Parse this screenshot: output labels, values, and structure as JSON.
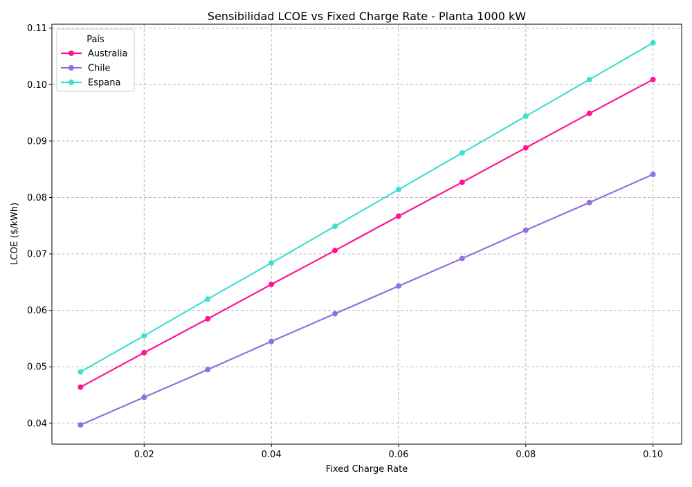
{
  "chart_data": {
    "type": "line",
    "title": "Sensibilidad LCOE vs Fixed Charge Rate - Planta 1000 kW",
    "xlabel": "Fixed Charge Rate",
    "ylabel": "LCOE ($/kWh)",
    "x": [
      0.01,
      0.02,
      0.03,
      0.04,
      0.05,
      0.06,
      0.07,
      0.08,
      0.09,
      0.1
    ],
    "xlim": [
      0.0055,
      0.1045
    ],
    "ylim": [
      0.0363,
      0.1107
    ],
    "xticks": [
      0.02,
      0.04,
      0.06,
      0.08,
      0.1
    ],
    "xtick_labels": [
      "0.02",
      "0.04",
      "0.06",
      "0.08",
      "0.10"
    ],
    "yticks": [
      0.04,
      0.05,
      0.06,
      0.07,
      0.08,
      0.09,
      0.1,
      0.11
    ],
    "ytick_labels": [
      "0.04",
      "0.05",
      "0.06",
      "0.07",
      "0.08",
      "0.09",
      "0.10",
      "0.11"
    ],
    "grid": true,
    "legend": {
      "title": "País",
      "placement": "top-left"
    },
    "series": [
      {
        "name": "Australia",
        "color": "#ff1493",
        "values": [
          0.0464,
          0.0525,
          0.0585,
          0.0646,
          0.0706,
          0.0767,
          0.0827,
          0.0888,
          0.0949,
          0.1009
        ]
      },
      {
        "name": "Chile",
        "color": "#9370db",
        "values": [
          0.0397,
          0.0446,
          0.0495,
          0.0545,
          0.0594,
          0.0643,
          0.0692,
          0.0742,
          0.0791,
          0.0841
        ]
      },
      {
        "name": "Espana",
        "color": "#40e0d0",
        "values": [
          0.0491,
          0.0555,
          0.062,
          0.0684,
          0.0749,
          0.0814,
          0.0879,
          0.0944,
          0.1009,
          0.1074
        ]
      }
    ]
  }
}
